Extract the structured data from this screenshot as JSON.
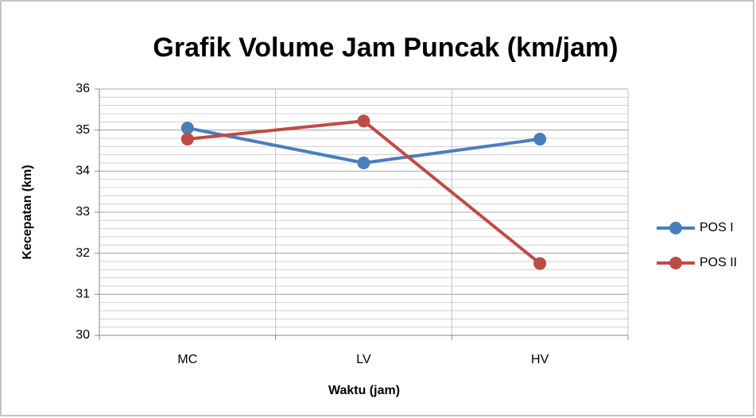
{
  "chart_data": {
    "type": "line",
    "title": "Grafik Volume Jam Puncak (km/jam)",
    "x_label": "Waktu (jam)",
    "y_label": "Kecepatan (km)",
    "categories": [
      "MC",
      "LV",
      "HV"
    ],
    "series": [
      {
        "name": "POS I",
        "color": "#4a7ebb",
        "values": [
          35.05,
          34.2,
          34.78
        ]
      },
      {
        "name": "POS II",
        "color": "#be4b48",
        "values": [
          34.78,
          35.22,
          31.75
        ]
      }
    ],
    "ylim": [
      30,
      36
    ],
    "yticks": [
      30,
      31,
      32,
      33,
      34,
      35,
      36
    ],
    "minor_grid_step": 0.2,
    "grid": true,
    "legend": "right"
  }
}
